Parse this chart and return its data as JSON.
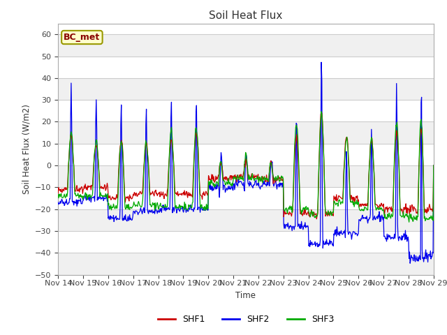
{
  "title": "Soil Heat Flux",
  "ylabel": "Soil Heat Flux (W/m2)",
  "xlabel": "Time",
  "ylim": [
    -50,
    65
  ],
  "yticks": [
    -50,
    -40,
    -30,
    -20,
    -10,
    0,
    10,
    20,
    30,
    40,
    50,
    60
  ],
  "bg_color": "#ffffff",
  "plot_bg_color": "#ffffff",
  "grid_color": "#cccccc",
  "band_colors": [
    "#f0f0f0",
    "#ffffff"
  ],
  "series_colors": {
    "SHF1": "#cc0000",
    "SHF2": "#0000ee",
    "SHF3": "#00aa00"
  },
  "series_linewidth": 0.9,
  "annotation_text": "BC_met",
  "annotation_bg": "#ffffcc",
  "annotation_border": "#999900",
  "xtick_labels": [
    "Nov 14",
    "Nov 15",
    "Nov 16",
    "Nov 17",
    "Nov 18",
    "Nov 19",
    "Nov 20",
    "Nov 21",
    "Nov 22",
    "Nov 23",
    "Nov 24",
    "Nov 25",
    "Nov 26",
    "Nov 27",
    "Nov 28",
    "Nov 29"
  ],
  "legend_labels": [
    "SHF1",
    "SHF2",
    "SHF3"
  ]
}
